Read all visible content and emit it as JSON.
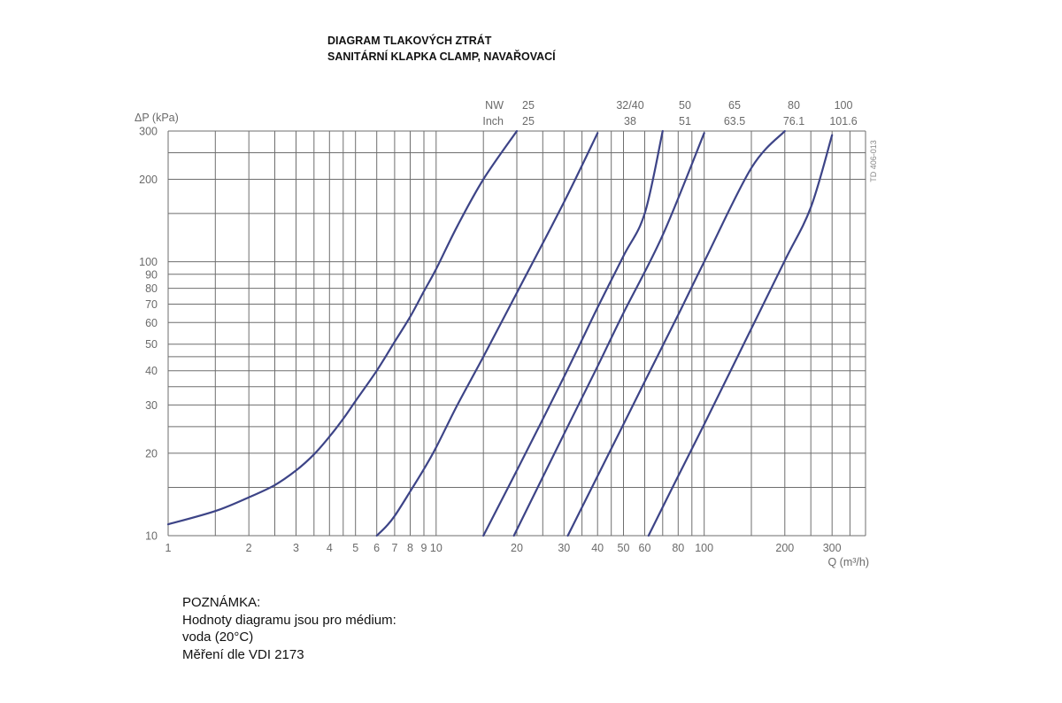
{
  "title": {
    "line1": "DIAGRAM TLAKOVÝCH ZTRÁT",
    "line2": "SANITÁRNÍ KLAPKA CLAMP, NAVAŘOVACÍ"
  },
  "note": {
    "heading": "POZNÁMKA:",
    "line1": "Hodnoty diagramu jsou pro médium:",
    "line2": "voda (20°C)",
    "line3": "Měření dle VDI 2173"
  },
  "colors": {
    "curve": "#3d4487",
    "grid": "#6e6e6e",
    "text": "#6a6a6a"
  },
  "chart_data": {
    "type": "line",
    "x_scale": "log",
    "y_scale": "log",
    "xlim": [
      1,
      400
    ],
    "ylim": [
      10,
      300
    ],
    "ylabel": "ΔP (kPa)",
    "xlabel": "Q (m³/h)",
    "x_ticks": [
      {
        "v": 1,
        "label": "1"
      },
      {
        "v": 2,
        "label": "2"
      },
      {
        "v": 3,
        "label": "3"
      },
      {
        "v": 4,
        "label": "4"
      },
      {
        "v": 5,
        "label": "5"
      },
      {
        "v": 6,
        "label": "6"
      },
      {
        "v": 7,
        "label": "7"
      },
      {
        "v": 8,
        "label": "8"
      },
      {
        "v": 9,
        "label": "9"
      },
      {
        "v": 10,
        "label": "10"
      },
      {
        "v": 20,
        "label": "20"
      },
      {
        "v": 30,
        "label": "30"
      },
      {
        "v": 40,
        "label": "40"
      },
      {
        "v": 50,
        "label": "50"
      },
      {
        "v": 60,
        "label": "60"
      },
      {
        "v": 80,
        "label": "80"
      },
      {
        "v": 100,
        "label": "100"
      },
      {
        "v": 200,
        "label": "200"
      },
      {
        "v": 300,
        "label": "300"
      }
    ],
    "y_ticks": [
      {
        "v": 10,
        "label": "10"
      },
      {
        "v": 20,
        "label": "20"
      },
      {
        "v": 30,
        "label": "30"
      },
      {
        "v": 40,
        "label": "40"
      },
      {
        "v": 50,
        "label": "50"
      },
      {
        "v": 60,
        "label": "60"
      },
      {
        "v": 70,
        "label": "70"
      },
      {
        "v": 80,
        "label": "80"
      },
      {
        "v": 90,
        "label": "90"
      },
      {
        "v": 100,
        "label": "100"
      },
      {
        "v": 200,
        "label": "200"
      },
      {
        "v": 300,
        "label": "300"
      }
    ],
    "x_grid": [
      1,
      1.5,
      2,
      2.5,
      3,
      3.5,
      4,
      4.5,
      5,
      6,
      7,
      8,
      9,
      10,
      15,
      20,
      25,
      30,
      35,
      40,
      45,
      50,
      60,
      70,
      80,
      90,
      100,
      150,
      200,
      250,
      300,
      350,
      400
    ],
    "y_grid": [
      10,
      15,
      20,
      25,
      30,
      35,
      40,
      45,
      50,
      60,
      70,
      80,
      90,
      100,
      150,
      200,
      250,
      300
    ],
    "header_rows": [
      {
        "label": "NW",
        "values": [
          "25",
          "32/40",
          "50",
          "65",
          "80",
          "100"
        ]
      },
      {
        "label": "Inch",
        "values": [
          "25",
          "38",
          "51",
          "63.5",
          "76.1",
          "101.6"
        ]
      }
    ],
    "series": [
      {
        "nw": "25",
        "x": [
          1,
          1.5,
          2,
          2.5,
          3,
          3.5,
          4,
          4.5,
          5,
          6,
          7,
          8,
          9,
          10,
          12,
          15,
          20
        ],
        "y": [
          11,
          12.3,
          13.8,
          15.3,
          17.3,
          19.8,
          23,
          26.7,
          31,
          40,
          51,
          63,
          78,
          94,
          135,
          200,
          300
        ]
      },
      {
        "nw": "32/40",
        "x": [
          6,
          6.5,
          7,
          8,
          9,
          10,
          12,
          15,
          20,
          30,
          40
        ],
        "y": [
          10,
          10.8,
          11.8,
          14.5,
          17.5,
          21,
          30,
          45,
          77,
          165,
          295
        ]
      },
      {
        "nw": "50",
        "x": [
          15,
          20,
          30,
          40,
          50,
          60,
          70
        ],
        "y": [
          10,
          17.3,
          38,
          68,
          105,
          150,
          300
        ]
      },
      {
        "nw": "65",
        "x": [
          19.5,
          30,
          40,
          50,
          70,
          100
        ],
        "y": [
          10,
          23.5,
          41.5,
          65,
          125,
          295
        ]
      },
      {
        "nw": "80",
        "x": [
          31,
          40,
          50,
          60,
          80,
          100,
          150,
          200
        ],
        "y": [
          10,
          16.5,
          25.5,
          36.5,
          64,
          100,
          220,
          300
        ]
      },
      {
        "nw": "100",
        "x": [
          62,
          80,
          100,
          150,
          200,
          250,
          300
        ],
        "y": [
          10,
          16.5,
          25.5,
          57,
          101,
          158,
          290
        ]
      }
    ],
    "annotation": "TD 406-013"
  }
}
